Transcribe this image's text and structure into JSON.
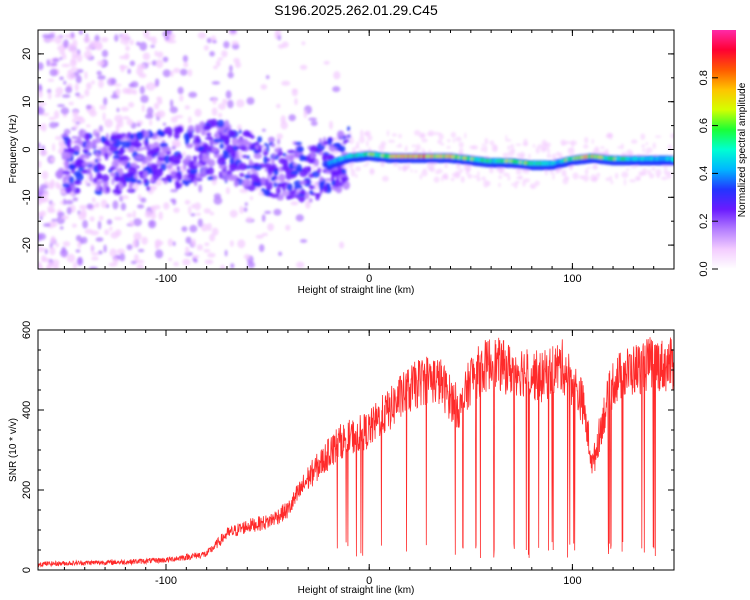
{
  "title": "S196.2025.262.01.29.C45",
  "colors": {
    "snr_line": "#ff2a2a",
    "colormap": [
      "#ffffff",
      "#f3ccff",
      "#b37cff",
      "#6a1bff",
      "#2235ff",
      "#00b7ff",
      "#00ffd2",
      "#1bff35",
      "#d4ff00",
      "#ffc400",
      "#ff5a00",
      "#ff0033",
      "#ff2aa8"
    ]
  },
  "chart_data": [
    {
      "type": "heatmap",
      "title": "",
      "xlabel": "Height of straight line (km)",
      "ylabel": "Frequency (Hz)",
      "xlim": [
        -163,
        150
      ],
      "ylim": [
        -25,
        25
      ],
      "x_ticks": [
        -100,
        0,
        100
      ],
      "y_ticks": [
        -20,
        -10,
        0,
        10,
        20
      ],
      "colorbar": {
        "label": "Normalized spectral amplitude",
        "range": [
          0,
          1
        ],
        "ticks": [
          "0.0",
          "0.2",
          "0.4",
          "0.6",
          "0.8"
        ],
        "tick_values": [
          0.0,
          0.2,
          0.4,
          0.6,
          0.8
        ]
      },
      "signal_track": {
        "x": [
          -150,
          -130,
          -110,
          -90,
          -75,
          -60,
          -45,
          -30,
          -20,
          -10,
          0,
          10,
          20,
          30,
          40,
          50,
          60,
          70,
          80,
          90,
          100,
          110,
          120,
          130,
          140,
          148
        ],
        "freq": [
          -3,
          -3,
          -2.5,
          -1.5,
          0,
          -2,
          -4,
          -5,
          -3,
          -1.5,
          -1,
          -1.5,
          -1.5,
          -1.5,
          -1.5,
          -2,
          -2.5,
          -2.5,
          -3,
          -3,
          -2,
          -1.5,
          -2,
          -2,
          -2,
          -2
        ],
        "amplitude": [
          0.25,
          0.28,
          0.3,
          0.3,
          0.3,
          0.28,
          0.3,
          0.32,
          0.4,
          0.5,
          0.6,
          0.65,
          0.8,
          0.8,
          0.7,
          0.6,
          0.55,
          0.65,
          0.6,
          0.5,
          0.6,
          0.75,
          0.6,
          0.5,
          0.45,
          0.45
        ]
      }
    },
    {
      "type": "line",
      "title": "",
      "xlabel": "Height of straight line (km)",
      "ylabel": "SNR (10 * v/v)",
      "xlim": [
        -163,
        150
      ],
      "ylim": [
        0,
        600
      ],
      "x_ticks": [
        -100,
        0,
        100
      ],
      "y_ticks": [
        0,
        200,
        400,
        600
      ],
      "series": [
        {
          "x": [
            -163,
            -140,
            -120,
            -100,
            -80,
            -70,
            -60,
            -50,
            -40,
            -30,
            -20,
            -15,
            -10,
            -5,
            0,
            5,
            10,
            15,
            20,
            25,
            30,
            35,
            40,
            45,
            50,
            55,
            60,
            65,
            70,
            75,
            80,
            85,
            90,
            95,
            100,
            105,
            110,
            115,
            120,
            125,
            130,
            135,
            140,
            145,
            150
          ],
          "values": [
            15,
            18,
            20,
            25,
            40,
            90,
            110,
            120,
            150,
            230,
            290,
            320,
            330,
            340,
            350,
            380,
            400,
            430,
            450,
            470,
            480,
            470,
            430,
            400,
            480,
            500,
            520,
            510,
            500,
            500,
            490,
            480,
            500,
            510,
            470,
            420,
            260,
            380,
            470,
            490,
            500,
            510,
            520,
            510,
            515
          ]
        }
      ]
    }
  ]
}
